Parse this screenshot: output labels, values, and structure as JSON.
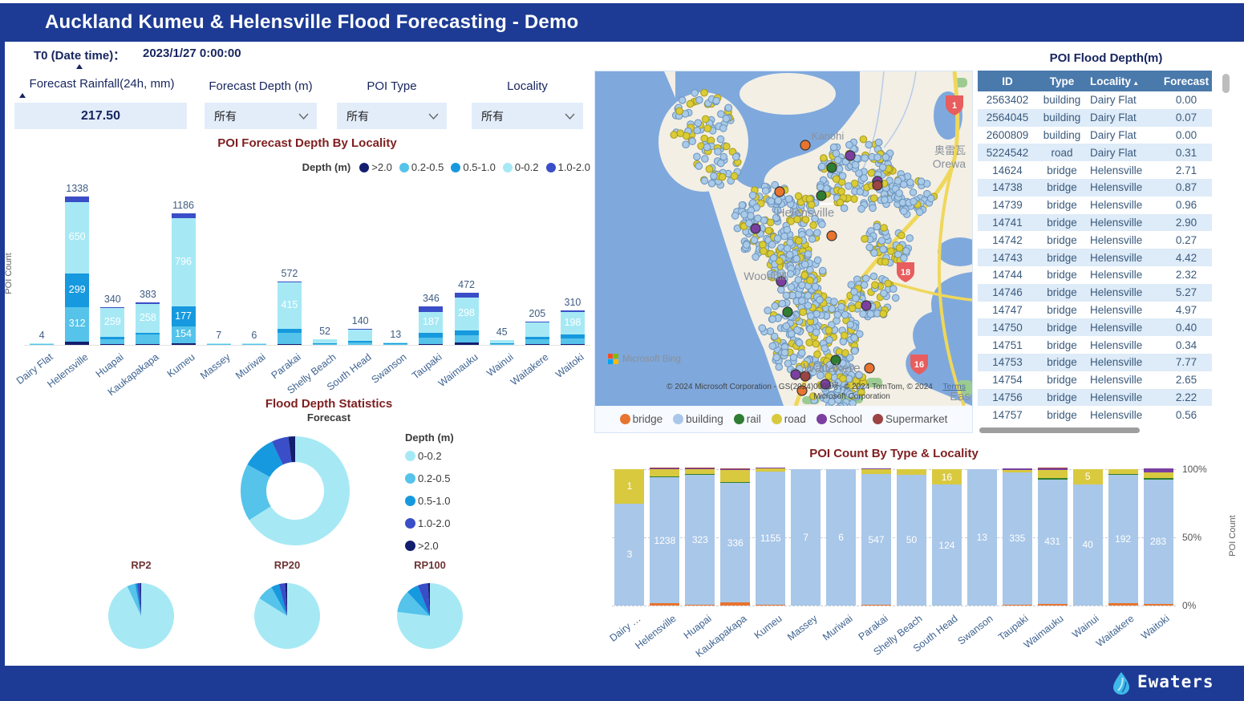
{
  "header": {
    "title": "Auckland Kumeu & Helensville Flood Forecasting - Demo"
  },
  "t0": {
    "label": "T0 (Date time)：",
    "value": "2023/1/27 0:00:00"
  },
  "slicers": {
    "rainfall": {
      "label": "Forecast Rainfall(24h, mm)",
      "value": "217.50"
    },
    "depth": {
      "label": "Forecast Depth (m)",
      "value": "所有"
    },
    "poi_type": {
      "label": "POI Type",
      "value": "所有"
    },
    "locality": {
      "label": "Locality",
      "value": "所有"
    }
  },
  "depth_colors": {
    "0-0.2": "#A6E9F5",
    "0.2-0.5": "#55C3EA",
    "0.5-1.0": "#1699DE",
    "1.0-2.0": "#3A4EC8",
    ">2.0": "#141E6E"
  },
  "poi_colors": {
    "bridge": "#E8742F",
    "building": "#A9C7E8",
    "rail": "#2E7D32",
    "road": "#D9C93F",
    "School": "#7B3FA0",
    "Supermarket": "#9C4343"
  },
  "chart_data": [
    {
      "id": "poi-forecast-depth-by-locality",
      "type": "bar",
      "stacked": true,
      "title": "POI Forecast Depth By Locality",
      "ylabel": "POI Count",
      "legend_title": "Depth (m)",
      "legend_order": [
        ">2.0",
        "0.2-0.5",
        "0.5-1.0",
        "0-0.2",
        "1.0-2.0"
      ],
      "categories": [
        "Dairy Flat",
        "Helensville",
        "Huapai",
        "Kaukapakapa",
        "Kumeu",
        "Massey",
        "Muriwai",
        "Parakai",
        "Shelly Beach",
        "South Head",
        "Swanson",
        "Taupaki",
        "Waimauku",
        "Wainui",
        "Waitakere",
        "Waitoki"
      ],
      "totals": [
        4,
        1338,
        340,
        383,
        1186,
        7,
        6,
        572,
        52,
        140,
        13,
        346,
        472,
        45,
        205,
        310
      ],
      "series": [
        {
          "name": ">2.0",
          "values": [
            0,
            30,
            4,
            8,
            14,
            0,
            0,
            5,
            0,
            0,
            0,
            6,
            20,
            0,
            2,
            2
          ]
        },
        {
          "name": "0.2-0.5",
          "values": [
            2,
            312,
            45,
            86,
            154,
            4,
            3,
            100,
            8,
            25,
            8,
            60,
            70,
            10,
            45,
            50
          ]
        },
        {
          "name": "0.5-1.0",
          "values": [
            1,
            299,
            20,
            18,
            177,
            2,
            2,
            40,
            4,
            8,
            3,
            45,
            40,
            5,
            25,
            40
          ]
        },
        {
          "name": "0-0.2",
          "values": [
            1,
            650,
            259,
            258,
            796,
            1,
            1,
            415,
            40,
            105,
            2,
            187,
            298,
            30,
            130,
            198
          ]
        },
        {
          "name": "1.0-2.0",
          "values": [
            0,
            47,
            12,
            13,
            45,
            0,
            0,
            12,
            0,
            2,
            0,
            48,
            44,
            0,
            3,
            20
          ]
        }
      ]
    },
    {
      "id": "flood-depth-statistics",
      "type": "donut",
      "title": "Flood Depth Statistics",
      "subtitle": "Forecast",
      "legend_title": "Depth (m)",
      "labels": [
        "0-0.2",
        "0.2-0.5",
        "0.5-1.0",
        "1.0-2.0",
        ">2.0"
      ],
      "values_percent": [
        66,
        17,
        10,
        5,
        2
      ]
    },
    {
      "id": "return-period-pies",
      "type": "pie",
      "labels": [
        "0-0.2",
        "0.2-0.5",
        "0.5-1.0",
        "1.0-2.0",
        ">2.0"
      ],
      "charts": [
        {
          "label": "RP2",
          "values_percent": [
            93,
            4,
            1,
            1.5,
            0.5
          ]
        },
        {
          "label": "RP20",
          "values_percent": [
            84,
            8,
            4,
            3,
            1
          ]
        },
        {
          "label": "RP100",
          "values_percent": [
            77,
            11,
            6,
            5,
            1
          ]
        }
      ]
    },
    {
      "id": "poi-count-by-type-locality",
      "type": "bar",
      "stacked_100": true,
      "title": "POI Count By Type & Locality",
      "ylabel_right": "POI Count",
      "yticks": [
        "100%",
        "50%",
        "0%"
      ],
      "categories": [
        "Dairy …",
        "Helensville",
        "Huapai",
        "Kaukapakapa",
        "Kumeu",
        "Massey",
        "Muriwai",
        "Parakai",
        "Shelly Beach",
        "South Head",
        "Swanson",
        "Taupaki",
        "Waimauku",
        "Wainui",
        "Waitakere",
        "Waitoki"
      ],
      "series": [
        {
          "name": "bridge",
          "values": [
            0,
            20,
            1,
            8,
            1,
            0,
            0,
            2,
            0,
            0,
            0,
            3,
            6,
            0,
            4,
            4
          ]
        },
        {
          "name": "building",
          "values": [
            3,
            1238,
            323,
            336,
            1155,
            7,
            6,
            547,
            50,
            124,
            13,
            335,
            431,
            40,
            192,
            283
          ]
        },
        {
          "name": "rail",
          "values": [
            0,
            2,
            1,
            2,
            0,
            0,
            0,
            0,
            0,
            0,
            0,
            0,
            1,
            0,
            1,
            1
          ]
        },
        {
          "name": "road",
          "values": [
            1,
            70,
            12,
            33,
            28,
            0,
            0,
            20,
            2,
            16,
            0,
            7,
            30,
            5,
            8,
            14
          ]
        },
        {
          "name": "School",
          "values": [
            0,
            6,
            2,
            3,
            2,
            0,
            0,
            3,
            0,
            0,
            0,
            1,
            3,
            0,
            0,
            8
          ]
        },
        {
          "name": "Supermarket",
          "values": [
            0,
            2,
            1,
            1,
            0,
            0,
            0,
            0,
            0,
            0,
            0,
            0,
            1,
            0,
            0,
            0
          ]
        }
      ]
    }
  ],
  "map": {
    "legend": [
      "bridge",
      "building",
      "rail",
      "road",
      "School",
      "Supermarket"
    ],
    "place_labels": [
      "Kanohi",
      "奥雷瓦",
      "Orewa",
      "Helensville",
      "Woodhill",
      "Waitakere",
      "Eas"
    ],
    "route_shields": [
      "1",
      "18",
      "16"
    ],
    "attribution_line1": "© 2024 Microsoft Corporation - GS(2024)0999号, © 2024 TomTom, © 2024",
    "attribution_line2": "Microsoft Corporation",
    "terms": "Terms",
    "bing_logo": "Microsoft Bing"
  },
  "table": {
    "title": "POI Flood Depth(m)",
    "columns": [
      "ID",
      "Type",
      "Locality",
      "Forecast"
    ],
    "sort_column": "Locality",
    "rows": [
      [
        "2563402",
        "building",
        "Dairy Flat",
        "0.00"
      ],
      [
        "2564045",
        "building",
        "Dairy Flat",
        "0.07"
      ],
      [
        "2600809",
        "building",
        "Dairy Flat",
        "0.00"
      ],
      [
        "5224542",
        "road",
        "Dairy Flat",
        "0.31"
      ],
      [
        "14624",
        "bridge",
        "Helensville",
        "2.71"
      ],
      [
        "14738",
        "bridge",
        "Helensville",
        "0.87"
      ],
      [
        "14739",
        "bridge",
        "Helensville",
        "0.96"
      ],
      [
        "14741",
        "bridge",
        "Helensville",
        "2.90"
      ],
      [
        "14742",
        "bridge",
        "Helensville",
        "0.27"
      ],
      [
        "14743",
        "bridge",
        "Helensville",
        "4.42"
      ],
      [
        "14744",
        "bridge",
        "Helensville",
        "2.32"
      ],
      [
        "14746",
        "bridge",
        "Helensville",
        "5.27"
      ],
      [
        "14747",
        "bridge",
        "Helensville",
        "4.97"
      ],
      [
        "14750",
        "bridge",
        "Helensville",
        "0.40"
      ],
      [
        "14751",
        "bridge",
        "Helensville",
        "0.34"
      ],
      [
        "14753",
        "bridge",
        "Helensville",
        "7.77"
      ],
      [
        "14754",
        "bridge",
        "Helensville",
        "2.65"
      ],
      [
        "14756",
        "bridge",
        "Helensville",
        "2.22"
      ],
      [
        "14757",
        "bridge",
        "Helensville",
        "0.56"
      ]
    ]
  },
  "footer": {
    "brand": "Ewaters"
  }
}
